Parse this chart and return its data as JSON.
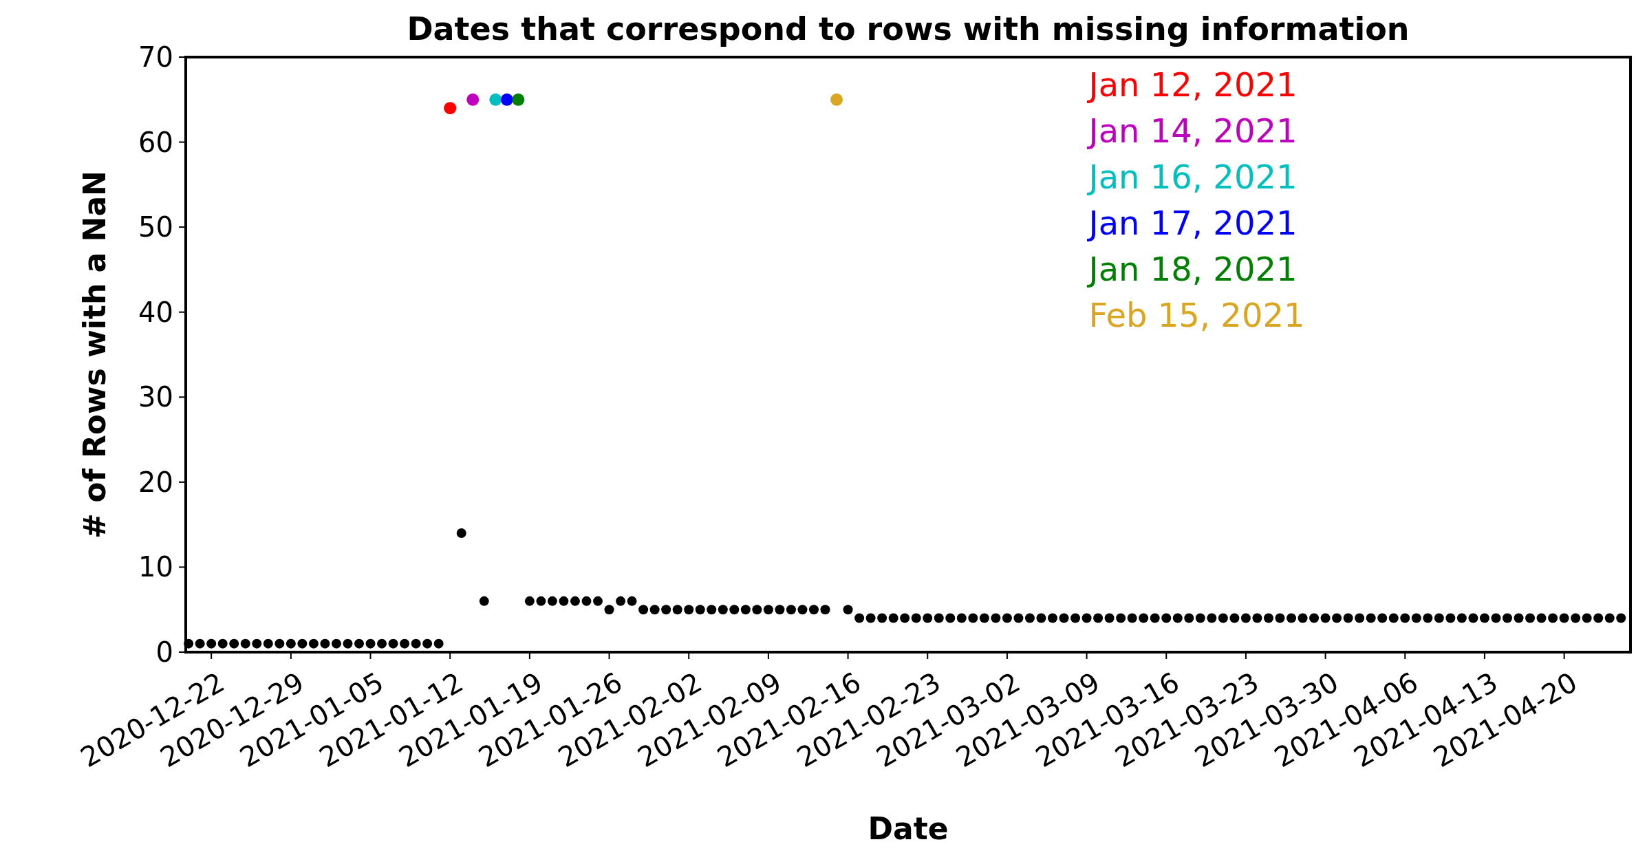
{
  "chart_data": {
    "type": "scatter",
    "title": "Dates that correspond to rows with missing information",
    "xlabel": "Date",
    "ylabel": "# of Rows with a NaN",
    "xlim": [
      "2020-12-19T18:00",
      "2021-04-25T20:00"
    ],
    "xticks": [
      "2020-12-22",
      "2020-12-29",
      "2021-01-05",
      "2021-01-12",
      "2021-01-19",
      "2021-01-26",
      "2021-02-02",
      "2021-02-09",
      "2021-02-16",
      "2021-02-23",
      "2021-03-02",
      "2021-03-09",
      "2021-03-16",
      "2021-03-23",
      "2021-03-30",
      "2021-04-06",
      "2021-04-13",
      "2021-04-20"
    ],
    "ylim": [
      0,
      70
    ],
    "yticks": [
      0,
      10,
      20,
      30,
      40,
      50,
      60,
      70
    ],
    "grid": false,
    "legend": "top right",
    "marker": "circle",
    "series": [
      {
        "color": "#000000",
        "x": [
          "2020-12-20",
          "2020-12-21",
          "2020-12-22",
          "2020-12-23",
          "2020-12-24",
          "2020-12-25",
          "2020-12-26",
          "2020-12-27",
          "2020-12-28",
          "2020-12-29",
          "2020-12-30",
          "2020-12-31",
          "2021-01-01",
          "2021-01-02",
          "2021-01-03",
          "2021-01-04",
          "2021-01-05",
          "2021-01-06",
          "2021-01-07",
          "2021-01-08",
          "2021-01-09",
          "2021-01-10",
          "2021-01-11",
          "2021-01-13",
          "2021-01-15",
          "2021-01-19",
          "2021-01-20",
          "2021-01-21",
          "2021-01-22",
          "2021-01-23",
          "2021-01-24",
          "2021-01-25",
          "2021-01-26",
          "2021-01-27",
          "2021-01-28",
          "2021-01-29",
          "2021-01-30",
          "2021-01-31",
          "2021-02-01",
          "2021-02-02",
          "2021-02-03",
          "2021-02-04",
          "2021-02-05",
          "2021-02-06",
          "2021-02-07",
          "2021-02-08",
          "2021-02-09",
          "2021-02-10",
          "2021-02-11",
          "2021-02-12",
          "2021-02-13",
          "2021-02-14",
          "2021-02-16",
          "2021-02-17",
          "2021-02-18",
          "2021-02-19",
          "2021-02-20",
          "2021-02-21",
          "2021-02-22",
          "2021-02-23",
          "2021-02-24",
          "2021-02-25",
          "2021-02-26",
          "2021-02-27",
          "2021-02-28",
          "2021-03-01",
          "2021-03-02",
          "2021-03-03",
          "2021-03-04",
          "2021-03-05",
          "2021-03-06",
          "2021-03-07",
          "2021-03-08",
          "2021-03-09",
          "2021-03-10",
          "2021-03-11",
          "2021-03-12",
          "2021-03-13",
          "2021-03-14",
          "2021-03-15",
          "2021-03-16",
          "2021-03-17",
          "2021-03-18",
          "2021-03-19",
          "2021-03-20",
          "2021-03-21",
          "2021-03-22",
          "2021-03-23",
          "2021-03-24",
          "2021-03-25",
          "2021-03-26",
          "2021-03-27",
          "2021-03-28",
          "2021-03-29",
          "2021-03-30",
          "2021-03-31",
          "2021-04-01",
          "2021-04-02",
          "2021-04-03",
          "2021-04-04",
          "2021-04-05",
          "2021-04-06",
          "2021-04-07",
          "2021-04-08",
          "2021-04-09",
          "2021-04-10",
          "2021-04-11",
          "2021-04-12",
          "2021-04-13",
          "2021-04-14",
          "2021-04-15",
          "2021-04-16",
          "2021-04-17",
          "2021-04-18",
          "2021-04-19",
          "2021-04-20",
          "2021-04-21",
          "2021-04-22",
          "2021-04-23",
          "2021-04-24",
          "2021-04-25"
        ],
        "values": [
          1,
          1,
          1,
          1,
          1,
          1,
          1,
          1,
          1,
          1,
          1,
          1,
          1,
          1,
          1,
          1,
          1,
          1,
          1,
          1,
          1,
          1,
          1,
          14,
          6,
          6,
          6,
          6,
          6,
          6,
          6,
          6,
          5,
          6,
          6,
          5,
          5,
          5,
          5,
          5,
          5,
          5,
          5,
          5,
          5,
          5,
          5,
          5,
          5,
          5,
          5,
          5,
          5,
          4,
          4,
          4,
          4,
          4,
          4,
          4,
          4,
          4,
          4,
          4,
          4,
          4,
          4,
          4,
          4,
          4,
          4,
          4,
          4,
          4,
          4,
          4,
          4,
          4,
          4,
          4,
          4,
          4,
          4,
          4,
          4,
          4,
          4,
          4,
          4,
          4,
          4,
          4,
          4,
          4,
          4,
          4,
          4,
          4,
          4,
          4,
          4,
          4,
          4,
          4,
          4,
          4,
          4,
          4,
          4,
          4,
          4,
          4,
          4,
          4,
          4,
          4,
          4,
          4,
          4,
          4,
          4
        ]
      },
      {
        "name": "Jan 12, 2021",
        "color": "#ff0000",
        "x": [
          "2021-01-12"
        ],
        "values": [
          64
        ]
      },
      {
        "name": "Jan 14, 2021",
        "color": "#bf00bf",
        "x": [
          "2021-01-14"
        ],
        "values": [
          65
        ]
      },
      {
        "name": "Jan 16, 2021",
        "color": "#00bfbf",
        "x": [
          "2021-01-16"
        ],
        "values": [
          65
        ]
      },
      {
        "name": "Jan 17, 2021",
        "color": "#0000ff",
        "x": [
          "2021-01-17"
        ],
        "values": [
          65
        ]
      },
      {
        "name": "Jan 18, 2021",
        "color": "#008000",
        "x": [
          "2021-01-18"
        ],
        "values": [
          65
        ]
      },
      {
        "name": "Feb 15, 2021",
        "color": "#daa520",
        "x": [
          "2021-02-15"
        ],
        "values": [
          65
        ]
      }
    ]
  }
}
